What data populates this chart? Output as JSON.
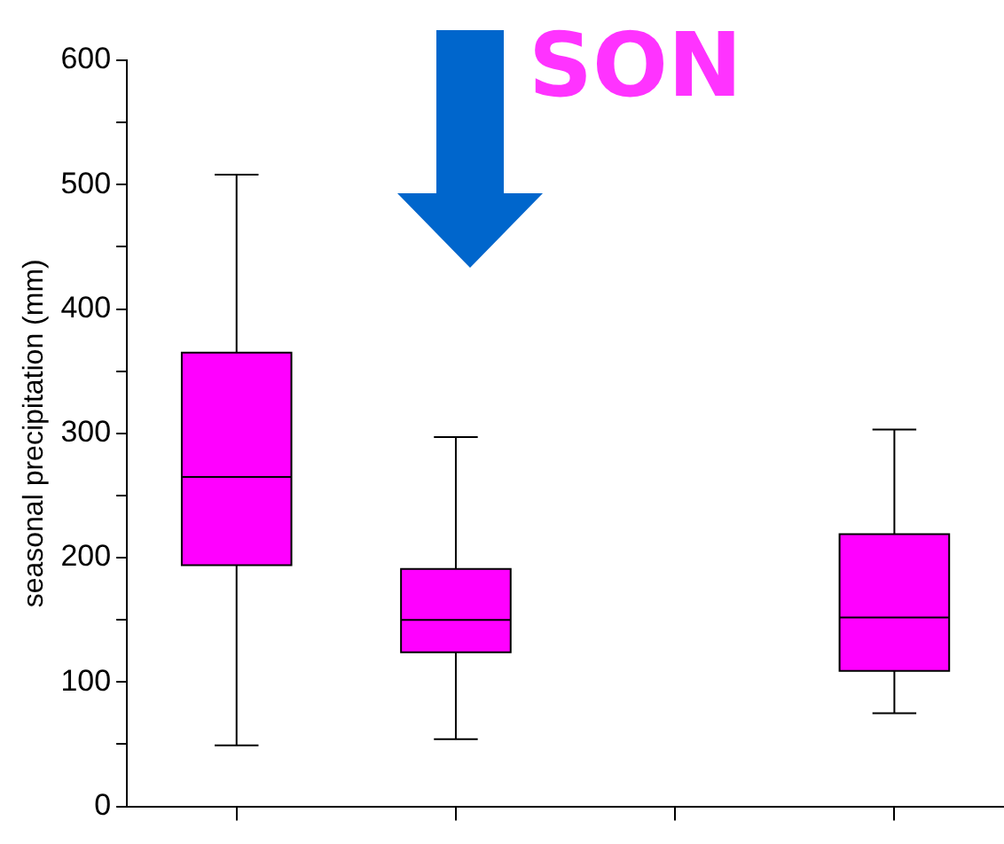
{
  "chart_data": {
    "type": "box",
    "title": "SON",
    "ylabel": "seasonal precipitation (mm)",
    "categories": [
      null,
      null,
      null,
      null
    ],
    "color": "#ff00ff",
    "boxes": [
      {
        "low": 49,
        "q1": 194,
        "median": 265,
        "q3": 365,
        "high": 508
      },
      {
        "low": 54,
        "q1": 124,
        "median": 150,
        "q3": 191,
        "high": 297
      },
      null,
      {
        "low": 75,
        "q1": 109,
        "median": 152,
        "q3": 219,
        "high": 303
      }
    ],
    "ylim": [
      0,
      600
    ],
    "yticks": [
      0,
      {
        "value": 50,
        "label": null
      },
      100,
      {
        "value": 150,
        "label": null
      },
      200,
      {
        "value": 250,
        "label": null
      },
      300,
      {
        "value": 350,
        "label": null
      },
      400,
      {
        "value": 450,
        "label": null
      },
      500,
      {
        "value": 550,
        "label": null
      },
      600
    ],
    "grid": false,
    "tick_labels": "y"
  }
}
